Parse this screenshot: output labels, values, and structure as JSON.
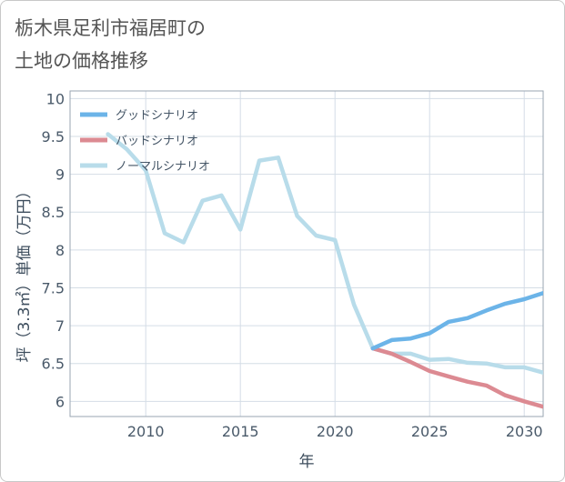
{
  "title": "栃木県足利市福居町の\n土地の価格推移",
  "chart_data": {
    "type": "line",
    "xlabel": "年",
    "ylabel": "坪（3.3㎡）単価（万円）",
    "xlim": [
      2006,
      2031
    ],
    "ylim": [
      5.8,
      10.1
    ],
    "xticks": [
      2010,
      2015,
      2020,
      2025,
      2030
    ],
    "yticks": [
      6,
      6.5,
      7,
      7.5,
      8,
      8.5,
      9,
      9.5,
      10
    ],
    "xtick_labels": [
      "2010",
      "2015",
      "2020",
      "2025",
      "2030"
    ],
    "ytick_labels": [
      "6",
      "6.5",
      "7",
      "7.5",
      "8",
      "8.5",
      "9",
      "9.5",
      "10"
    ],
    "legend_position": "top-left",
    "series": [
      {
        "name": "グッドシナリオ",
        "color": "#6cb4e8",
        "x": [
          2022,
          2023,
          2024,
          2025,
          2026,
          2027,
          2028,
          2029,
          2030,
          2031
        ],
        "values": [
          6.7,
          6.81,
          6.83,
          6.9,
          7.05,
          7.1,
          7.2,
          7.29,
          7.35,
          7.43
        ]
      },
      {
        "name": "バッドシナリオ",
        "color": "#dc8a92",
        "x": [
          2022,
          2023,
          2024,
          2025,
          2026,
          2027,
          2028,
          2029,
          2030,
          2031
        ],
        "values": [
          6.7,
          6.63,
          6.52,
          6.4,
          6.33,
          6.26,
          6.21,
          6.08,
          6.0,
          5.93
        ]
      },
      {
        "name": "ノーマルシナリオ",
        "color": "#b8dcea",
        "x": [
          2008,
          2009,
          2010,
          2011,
          2012,
          2013,
          2014,
          2015,
          2016,
          2017,
          2018,
          2019,
          2020,
          2021,
          2022,
          2023,
          2024,
          2025,
          2026,
          2027,
          2028,
          2029,
          2030,
          2031
        ],
        "values": [
          9.53,
          9.33,
          9.05,
          8.22,
          8.1,
          8.65,
          8.72,
          8.27,
          9.18,
          9.22,
          8.45,
          8.19,
          8.13,
          7.28,
          6.7,
          6.63,
          6.63,
          6.55,
          6.56,
          6.51,
          6.5,
          6.45,
          6.45,
          6.38
        ]
      }
    ]
  }
}
